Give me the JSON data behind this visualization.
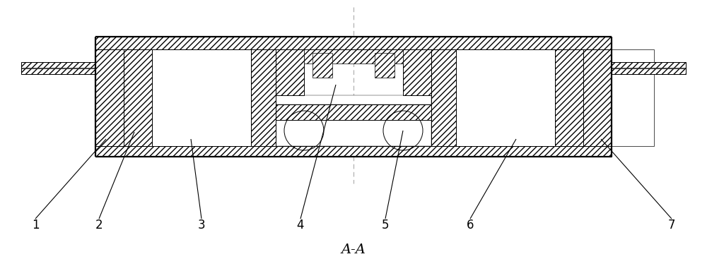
{
  "bg_color": "#ffffff",
  "line_color": "#000000",
  "fig_width": 10.0,
  "fig_height": 3.67,
  "dpi": 100,
  "labels": [
    "1",
    "2",
    "3",
    "4",
    "5",
    "6",
    "7"
  ],
  "section_label": "A-A",
  "hatch": "////",
  "centerline_color": "#999999",
  "lw_main": 1.2,
  "lw_thin": 0.7,
  "font_size_label": 12,
  "font_size_section": 14
}
